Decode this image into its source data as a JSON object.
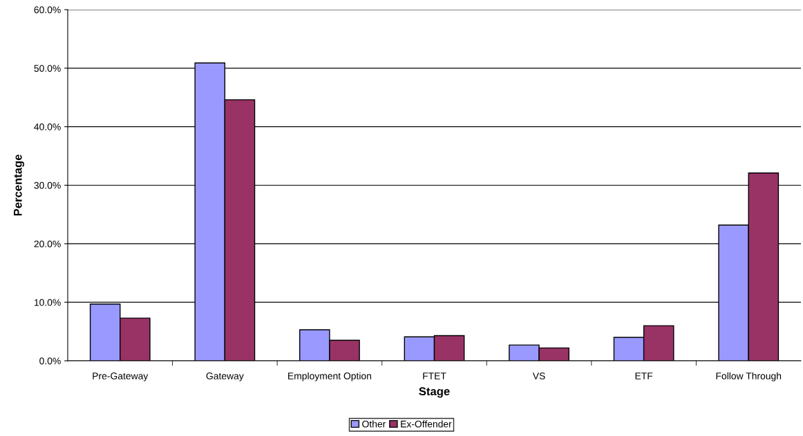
{
  "chart_data": {
    "type": "bar",
    "xlabel": "Stage",
    "ylabel": "Percentage",
    "categories": [
      "Pre-Gateway",
      "Gateway",
      "Employment Option",
      "FTET",
      "VS",
      "ETF",
      "Follow Through"
    ],
    "series": [
      {
        "name": "Other",
        "color": "#9999ff",
        "values": [
          9.7,
          50.9,
          5.3,
          4.1,
          2.7,
          4.0,
          23.2
        ]
      },
      {
        "name": "Ex-Offender",
        "color": "#993366",
        "values": [
          7.3,
          44.6,
          3.5,
          4.3,
          2.2,
          6.0,
          32.1
        ]
      }
    ],
    "ylim": [
      0,
      60
    ],
    "yticks": [
      {
        "value": 0,
        "label": "0.0%"
      },
      {
        "value": 10,
        "label": "10.0%"
      },
      {
        "value": 20,
        "label": "20.0%"
      },
      {
        "value": 30,
        "label": "30.0%"
      },
      {
        "value": 40,
        "label": "40.0%"
      },
      {
        "value": 50,
        "label": "50.0%"
      },
      {
        "value": 60,
        "label": "60.0%"
      }
    ],
    "grid": "y",
    "legend": "bottom"
  }
}
